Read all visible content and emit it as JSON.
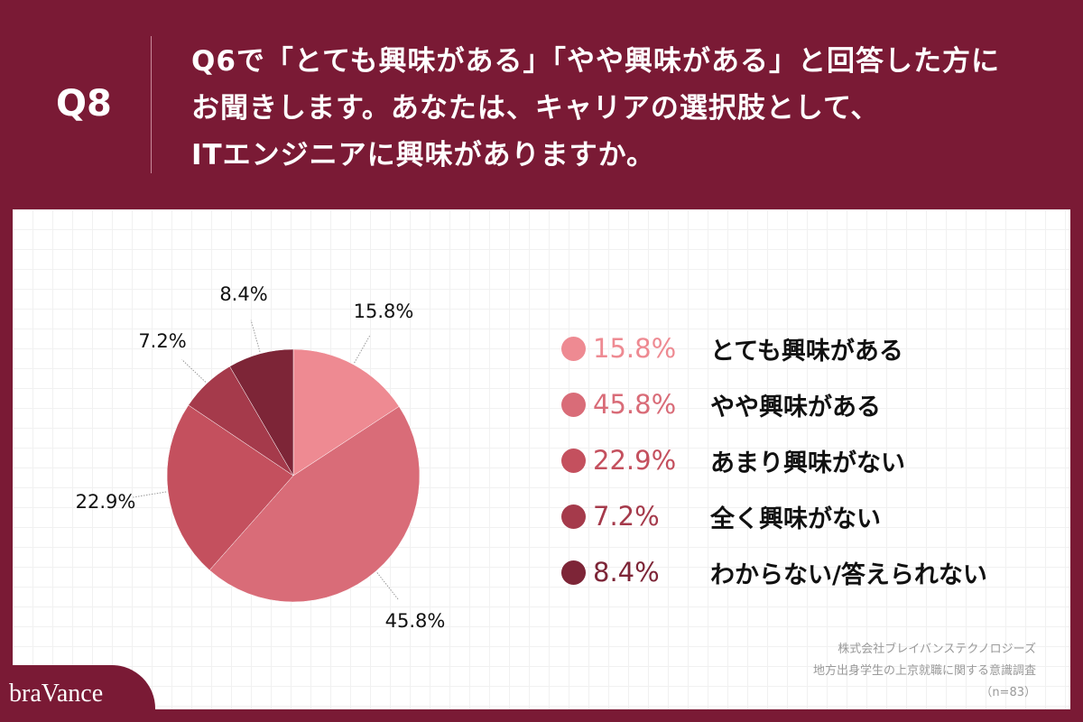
{
  "header": {
    "question_no": "Q8",
    "lines": [
      "Q6で「とても興味がある」「やや興味がある」と回答した方に",
      "お聞きします。あなたは、キャリアの選択肢として、",
      "ITエンジニアに興味がありますか。"
    ]
  },
  "chart_data": {
    "type": "pie",
    "categories": [
      "とても興味がある",
      "やや興味がある",
      "あまり興味がない",
      "全く興味がない",
      "わからない/答えられない"
    ],
    "values": [
      15.8,
      45.8,
      22.9,
      7.2,
      8.4
    ],
    "labels": [
      "15.8%",
      "45.8%",
      "22.9%",
      "7.2%",
      "8.4%"
    ],
    "colors": [
      "#ee8a92",
      "#d96c78",
      "#c4505e",
      "#a53a4b",
      "#7d2537"
    ],
    "start": "12 o'clock, clockwise",
    "legend": "right"
  },
  "source": {
    "company": "株式会社ブレイバンステクノロジーズ",
    "survey": "地方出身学生の上京就職に関する意識調査",
    "n": "（n=83）"
  },
  "logo": "braVance"
}
